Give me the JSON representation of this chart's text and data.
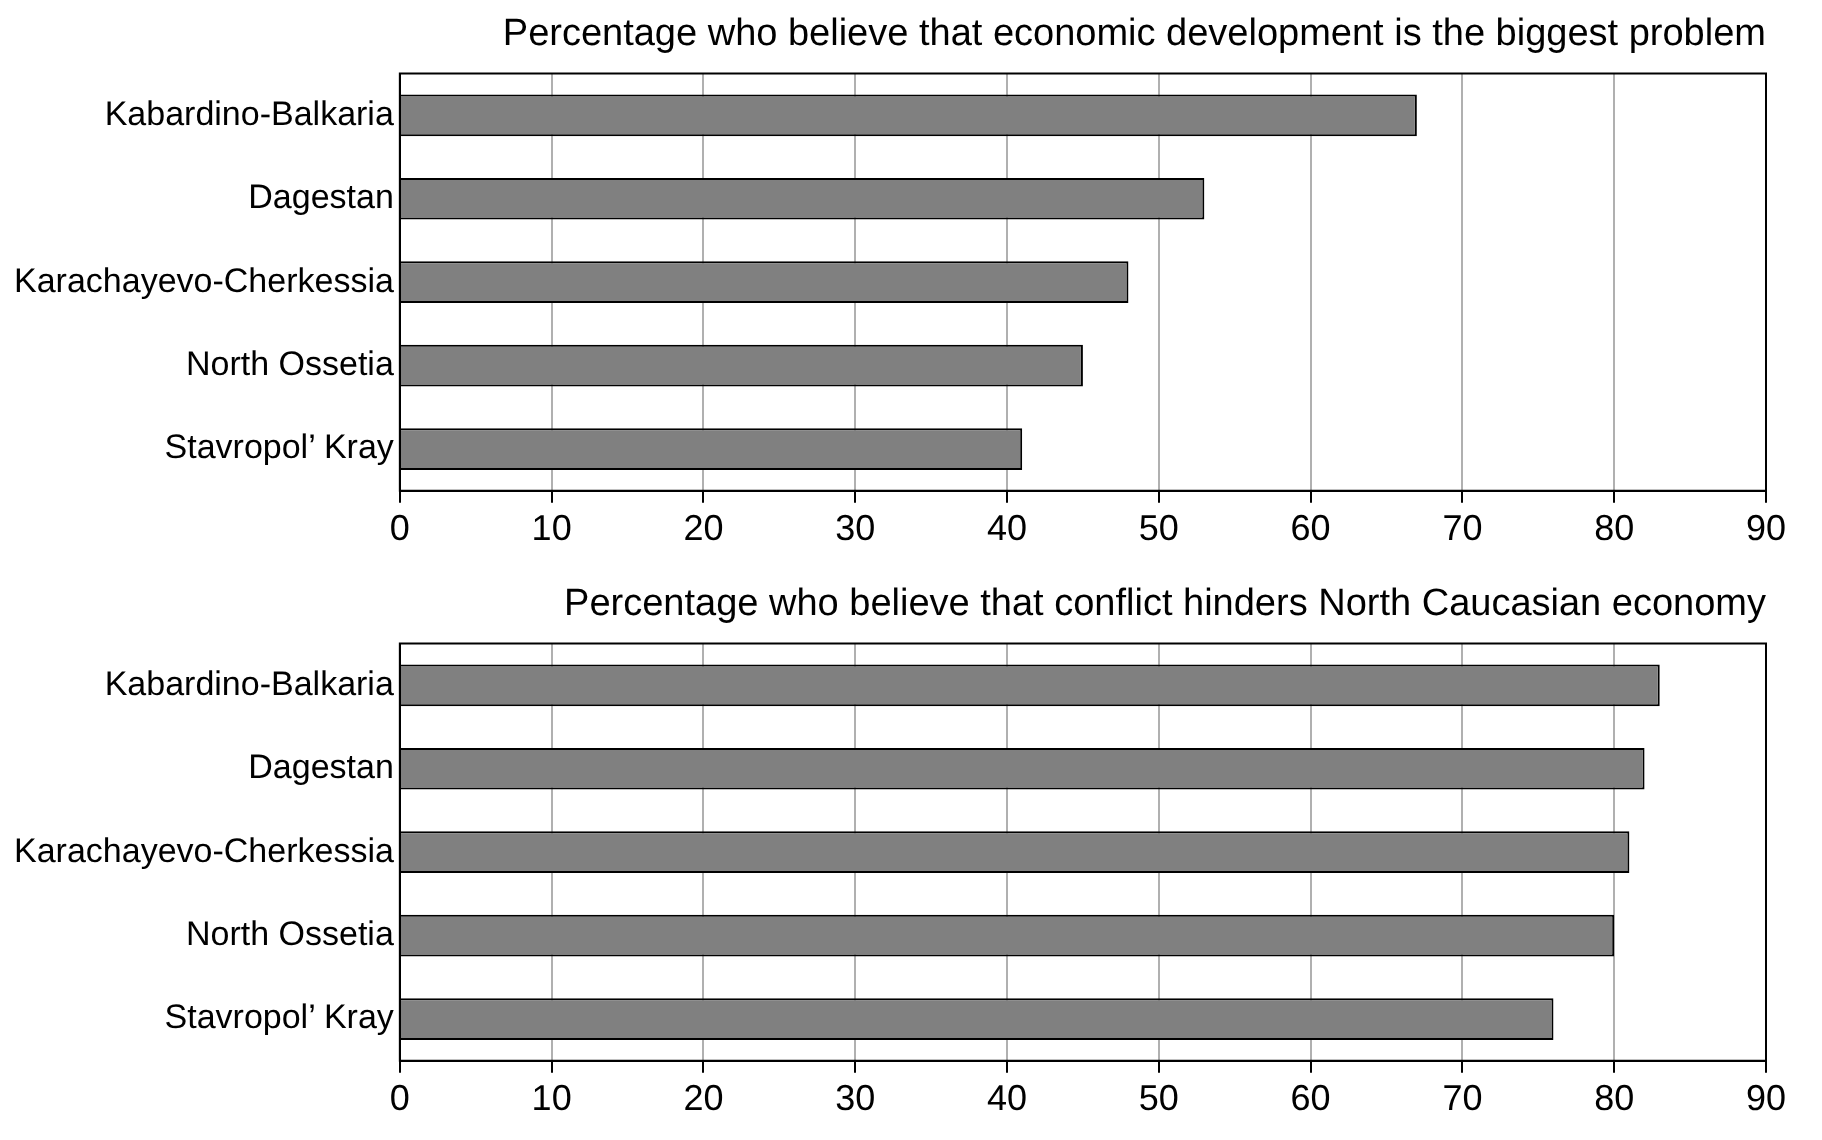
{
  "chart_data": [
    {
      "type": "bar",
      "orientation": "horizontal",
      "title": "Percentage who believe that economic development is the biggest problem",
      "categories": [
        "Kabardino-Balkaria",
        "Dagestan",
        "Karachayevo-Cherkessia",
        "North Ossetia",
        "Stavropol’ Kray"
      ],
      "values": [
        67,
        53,
        48,
        45,
        41
      ],
      "color": "#808080",
      "xlim": [
        0,
        90
      ],
      "xticks": [
        0,
        10,
        20,
        30,
        40,
        50,
        60,
        70,
        80,
        90
      ],
      "grid": "x",
      "legend": false
    },
    {
      "type": "bar",
      "orientation": "horizontal",
      "title": "Percentage who believe that conflict hinders North Caucasian economy",
      "categories": [
        "Kabardino-Balkaria",
        "Dagestan",
        "Karachayevo-Cherkessia",
        "North Ossetia",
        "Stavropol’ Kray"
      ],
      "values": [
        83,
        82,
        81,
        80,
        76
      ],
      "color": "#808080",
      "xlim": [
        0,
        90
      ],
      "xticks": [
        0,
        10,
        20,
        30,
        40,
        50,
        60,
        70,
        80,
        90
      ],
      "grid": "x",
      "legend": false
    }
  ]
}
